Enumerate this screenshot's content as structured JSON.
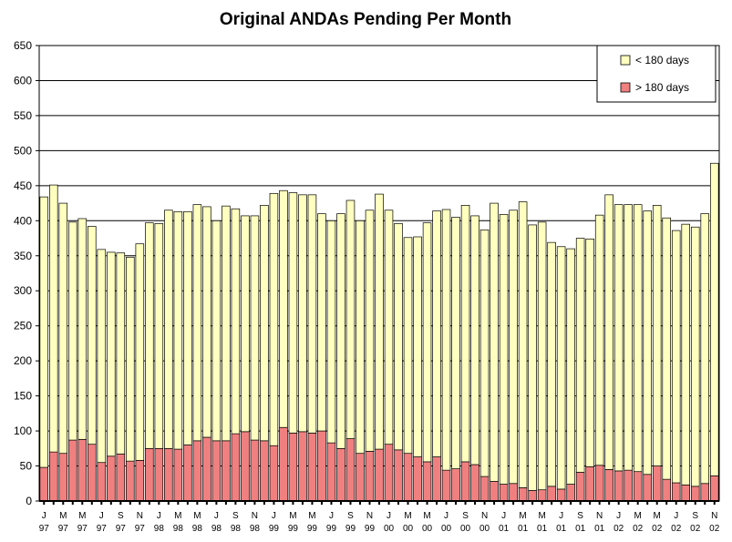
{
  "chart_data": {
    "type": "bar",
    "stacked": true,
    "title": "Original ANDAs Pending Per Month",
    "ylim": [
      0,
      650
    ],
    "yticks": [
      "0",
      "50",
      "100",
      "150",
      "200",
      "250",
      "300",
      "350",
      "400",
      "450",
      "500",
      "550",
      "600",
      "650"
    ],
    "grid": "horizontal",
    "legend_position": "top-right",
    "x_tick_labels": [
      [
        "J",
        "97"
      ],
      [
        "M",
        "97"
      ],
      [
        "M",
        "97"
      ],
      [
        "J",
        "97"
      ],
      [
        "S",
        "97"
      ],
      [
        "N",
        "97"
      ],
      [
        "J",
        "98"
      ],
      [
        "M",
        "98"
      ],
      [
        "M",
        "98"
      ],
      [
        "J",
        "98"
      ],
      [
        "S",
        "98"
      ],
      [
        "N",
        "98"
      ],
      [
        "J",
        "99"
      ],
      [
        "M",
        "99"
      ],
      [
        "M",
        "99"
      ],
      [
        "J",
        "99"
      ],
      [
        "S",
        "99"
      ],
      [
        "N",
        "99"
      ],
      [
        "J",
        "00"
      ],
      [
        "M",
        "00"
      ],
      [
        "M",
        "00"
      ],
      [
        "J",
        "00"
      ],
      [
        "S",
        "00"
      ],
      [
        "N",
        "00"
      ],
      [
        "J",
        "01"
      ],
      [
        "M",
        "01"
      ],
      [
        "M",
        "01"
      ],
      [
        "J",
        "01"
      ],
      [
        "S",
        "01"
      ],
      [
        "N",
        "01"
      ],
      [
        "J",
        "02"
      ],
      [
        "M",
        "02"
      ],
      [
        "M",
        "02"
      ],
      [
        "J",
        "02"
      ],
      [
        "S",
        "02"
      ],
      [
        "N",
        "02"
      ]
    ],
    "series": [
      {
        "name": "> 180 days",
        "color": "#f08080",
        "values": [
          48,
          70,
          68,
          87,
          88,
          81,
          55,
          64,
          67,
          57,
          58,
          75,
          75,
          75,
          74,
          80,
          86,
          91,
          86,
          86,
          96,
          99,
          87,
          86,
          79,
          105,
          97,
          99,
          97,
          100,
          83,
          75,
          89,
          68,
          71,
          74,
          81,
          73,
          68,
          63,
          56,
          63,
          44,
          46,
          56,
          52,
          35,
          28,
          24,
          25,
          19,
          15,
          16,
          21,
          17,
          24,
          41,
          49,
          51,
          45,
          43,
          44,
          42,
          38,
          50,
          31,
          26,
          23,
          21,
          25,
          36
        ]
      },
      {
        "name": "< 180 days",
        "color": "#ffffbf",
        "values": [
          386,
          381,
          357,
          311,
          315,
          311,
          304,
          291,
          287,
          291,
          309,
          322,
          321,
          340,
          339,
          333,
          337,
          329,
          314,
          335,
          321,
          308,
          320,
          336,
          360,
          338,
          343,
          338,
          340,
          310,
          317,
          335,
          340,
          332,
          344,
          364,
          334,
          323,
          308,
          314,
          341,
          351,
          372,
          359,
          366,
          355,
          352,
          397,
          385,
          390,
          408,
          379,
          382,
          348,
          346,
          336,
          334,
          325,
          357,
          392,
          380,
          379,
          381,
          376,
          372,
          373,
          360,
          372,
          370,
          385,
          446
        ]
      }
    ]
  },
  "colors": {
    "plot_border": "#000000",
    "gridline": "#000000"
  }
}
